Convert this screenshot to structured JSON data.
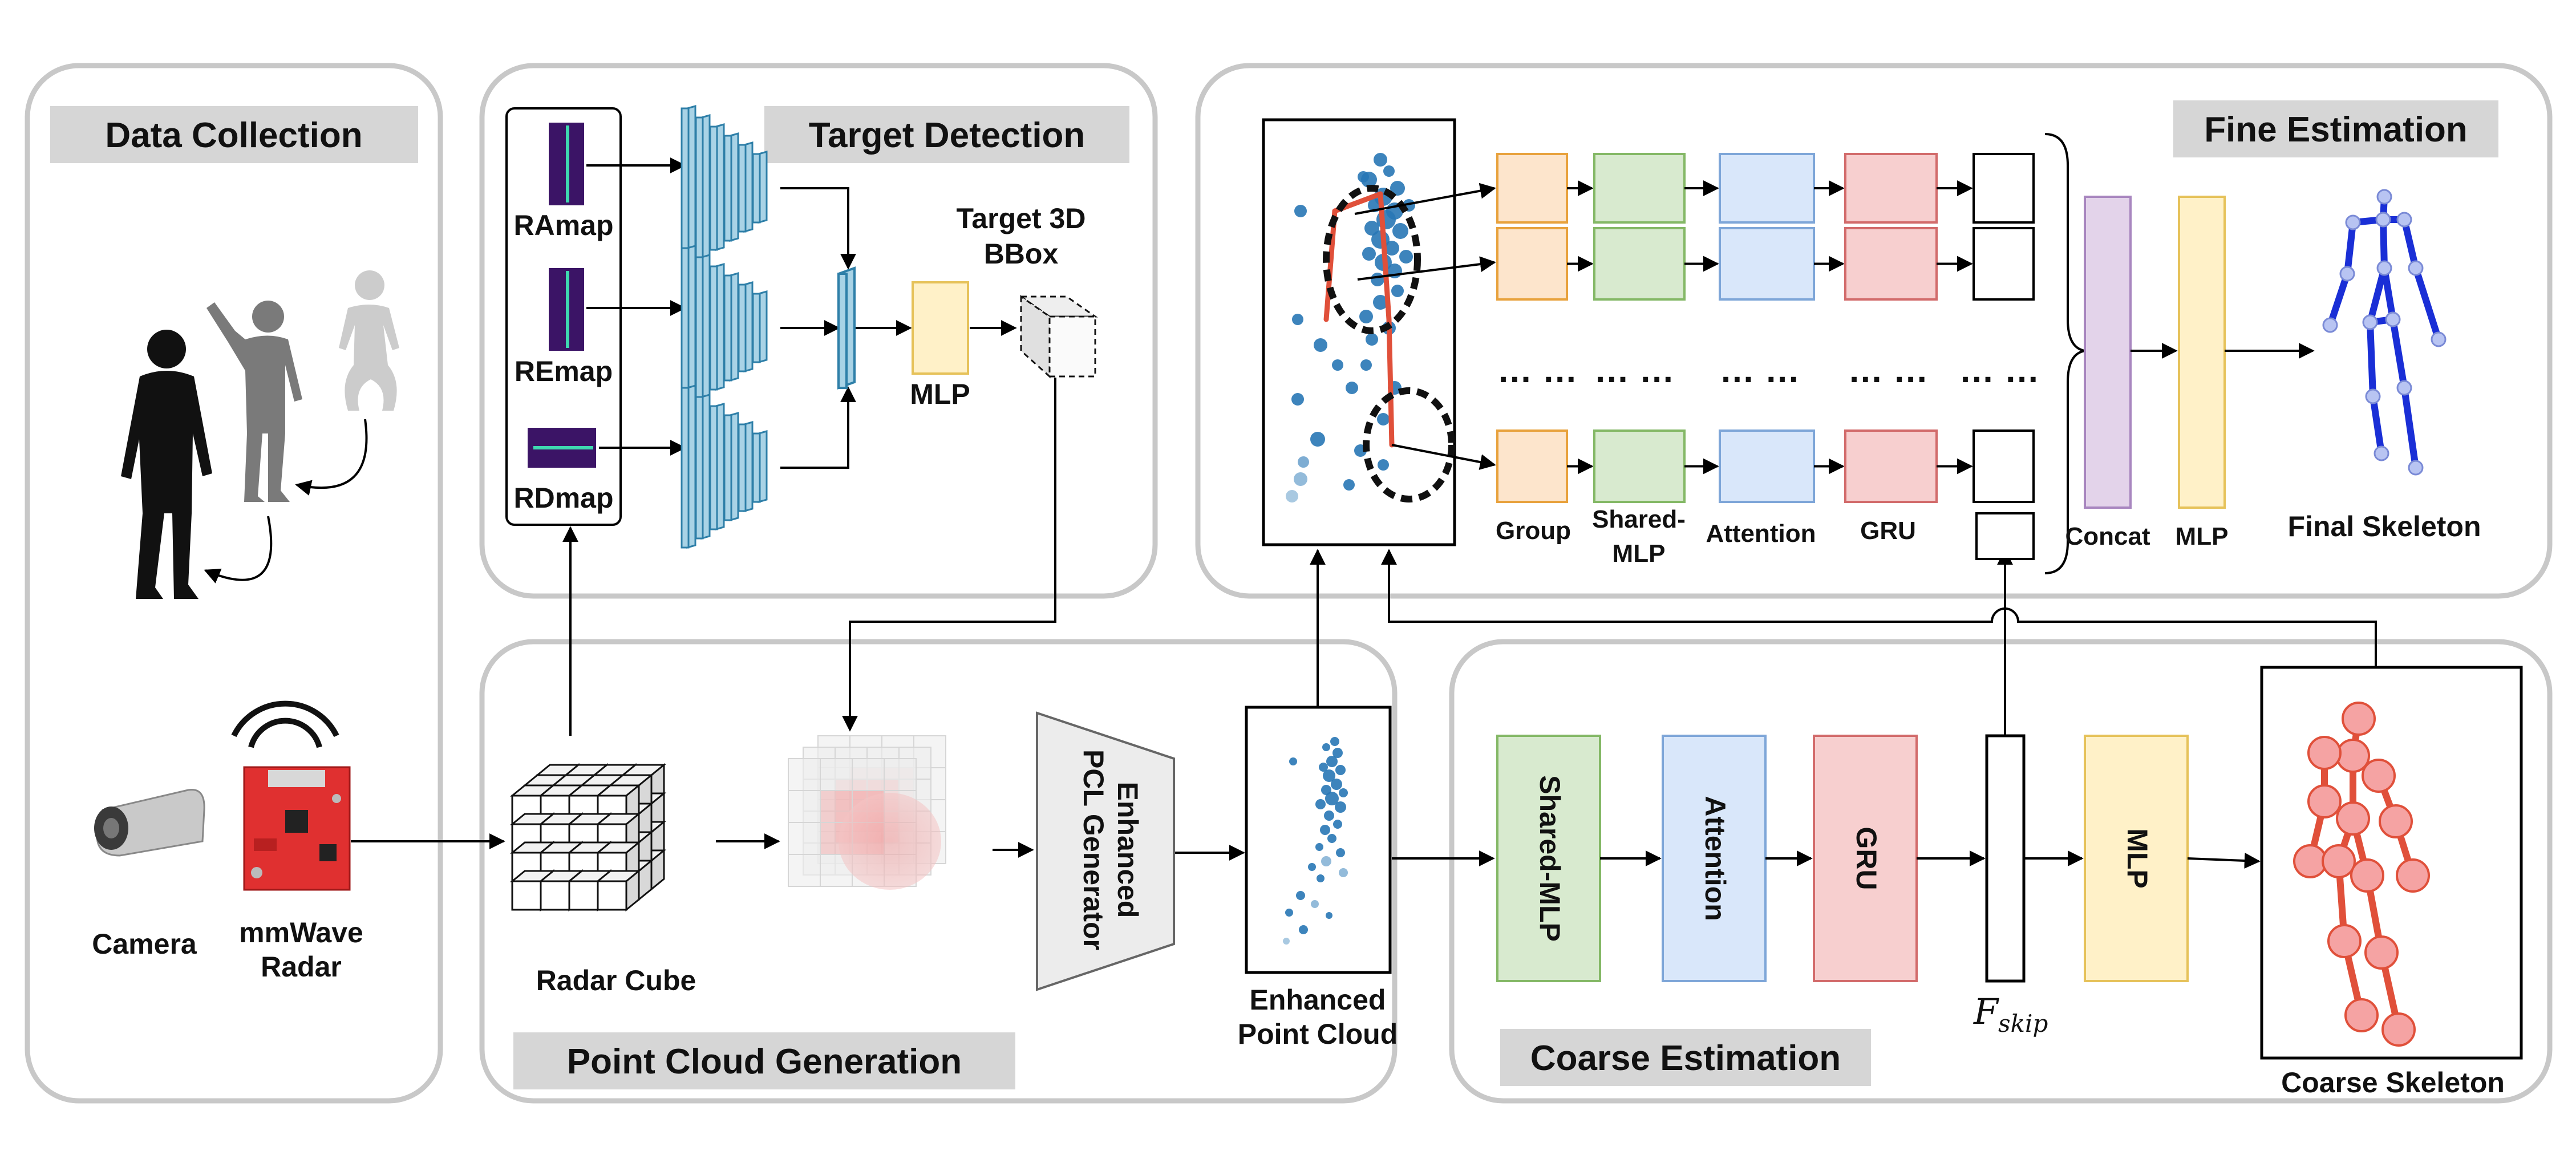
{
  "panels": {
    "data_collection": "Data Collection",
    "target_detection": "Target Detection",
    "fine_estimation": "Fine Estimation",
    "point_cloud_generation": "Point Cloud Generation",
    "coarse_estimation": "Coarse Estimation"
  },
  "data_collection": {
    "camera": "Camera",
    "radar_line1": "mmWave",
    "radar_line2": "Radar"
  },
  "target_detection": {
    "maps": [
      "RAmap",
      "REmap",
      "RDmap"
    ],
    "mlp": "MLP",
    "bbox_line1": "Target 3D",
    "bbox_line2": "BBox"
  },
  "point_cloud_generation": {
    "radar_cube": "Radar Cube",
    "generator_line1": "Enhanced",
    "generator_line2": "PCL Generator",
    "enhanced_line1": "Enhanced",
    "enhanced_line2": "Point Cloud"
  },
  "coarse_estimation": {
    "blocks": [
      "Shared-MLP",
      "Attention",
      "GRU",
      "MLP"
    ],
    "fskip_main": "F",
    "fskip_sub": "skip",
    "coarse_skeleton": "Coarse Skeleton"
  },
  "fine_estimation": {
    "group": "Group",
    "shared_line1": "Shared-",
    "shared_line2": "MLP",
    "attention": "Attention",
    "gru": "GRU",
    "concat": "Concat",
    "mlp": "MLP",
    "final_skeleton": "Final Skeleton",
    "ellipsis": "… …"
  },
  "colors": {
    "panel_border": "#c8c8c8",
    "header_fill": "#d6d6d6",
    "orange_fill": "#fde5cc",
    "orange_stroke": "#e8a23d",
    "green_fill": "#d8eacf",
    "green_stroke": "#84b866",
    "blue_fill": "#d9e7fa",
    "blue_stroke": "#7ea6d8",
    "red_fill": "#f7cfcf",
    "red_stroke": "#d26b6b",
    "yellow_fill": "#fff1c8",
    "yellow_stroke": "#e6c25a",
    "purple_fill": "#e3d3ea",
    "purple_stroke": "#a886bf",
    "cnn_fill": "#a9d3e6",
    "cnn_stroke": "#2e7fa8",
    "skeleton_red": "#e0503a",
    "skeleton_blue": "#1a2fd6",
    "point_blue": "#2877b5"
  }
}
